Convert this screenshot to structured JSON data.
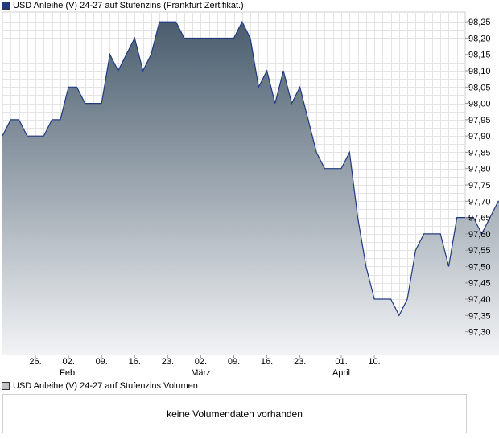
{
  "legend": {
    "price_label": "USD Anleihe (V) 24-27 auf Stufenzins (Frankfurt Zertifikat.)",
    "price_color": "#203a80",
    "volume_label": "USD Anleihe (V) 24-27 auf Stufenzins Volumen",
    "volume_color": "#bfc3c8"
  },
  "volume": {
    "empty_message": "keine Volumendaten vorhanden"
  },
  "chart_data": {
    "type": "area",
    "series": [
      {
        "name": "USD Anleihe (V) 24-27 auf Stufenzins (Frankfurt Zertifikat.)",
        "x": [
          0,
          2,
          4,
          6,
          8,
          10,
          12,
          14,
          16,
          18,
          20,
          22,
          24,
          26,
          28,
          30,
          32,
          34,
          36,
          38,
          40,
          42,
          44,
          46,
          48,
          50,
          52,
          54,
          56,
          58,
          60,
          62,
          64,
          66,
          68,
          70,
          72,
          74,
          76,
          78,
          80,
          82,
          84,
          86,
          88,
          90,
          92,
          94,
          96,
          98,
          100,
          102
        ],
        "values": [
          97.9,
          97.95,
          97.95,
          97.9,
          97.9,
          97.9,
          97.95,
          97.95,
          98.05,
          98.05,
          98.0,
          98.0,
          98.0,
          98.15,
          98.1,
          98.15,
          98.2,
          98.1,
          98.15,
          98.25,
          98.25,
          98.25,
          98.2,
          98.2,
          98.2,
          98.2,
          98.2,
          98.2,
          98.2,
          98.25,
          98.2,
          98.05,
          98.1,
          98.0,
          98.1,
          98.0,
          98.05,
          97.95,
          97.85,
          97.8,
          97.8,
          97.8,
          97.85,
          97.65,
          97.5,
          97.4,
          97.4,
          97.4,
          97.35,
          97.4,
          97.55,
          97.6
        ]
      }
    ],
    "continued_values": [
      97.6,
      97.6,
      97.5,
      97.65,
      97.65,
      97.65,
      97.6,
      97.65,
      97.7,
      97.7
    ],
    "ylim": [
      97.23,
      98.28
    ],
    "y_ticks": [
      "98,25",
      "98,20",
      "98,15",
      "98,10",
      "98,05",
      "98,00",
      "97,95",
      "97,90",
      "97,85",
      "97,80",
      "97,75",
      "97,70",
      "97,65",
      "97,60",
      "97,55",
      "97,50",
      "97,45",
      "97,40",
      "97,35",
      "97,30"
    ],
    "x_ticks": [
      {
        "day": "26.",
        "month": ""
      },
      {
        "day": "02.",
        "month": "Feb."
      },
      {
        "day": "09.",
        "month": ""
      },
      {
        "day": "16.",
        "month": ""
      },
      {
        "day": "23.",
        "month": ""
      },
      {
        "day": "02.",
        "month": "März"
      },
      {
        "day": "09.",
        "month": ""
      },
      {
        "day": "16.",
        "month": ""
      },
      {
        "day": "23.",
        "month": ""
      },
      {
        "day": "01.",
        "month": "April"
      },
      {
        "day": "10.",
        "month": ""
      }
    ],
    "x_tick_positions": [
      8,
      16,
      24,
      32,
      40,
      48,
      56,
      64,
      72,
      82,
      90
    ],
    "grid": true,
    "line_color": "#203a80",
    "fill_top_color": "#4a5d6e",
    "fill_bottom_color": "#f2f3f5"
  }
}
